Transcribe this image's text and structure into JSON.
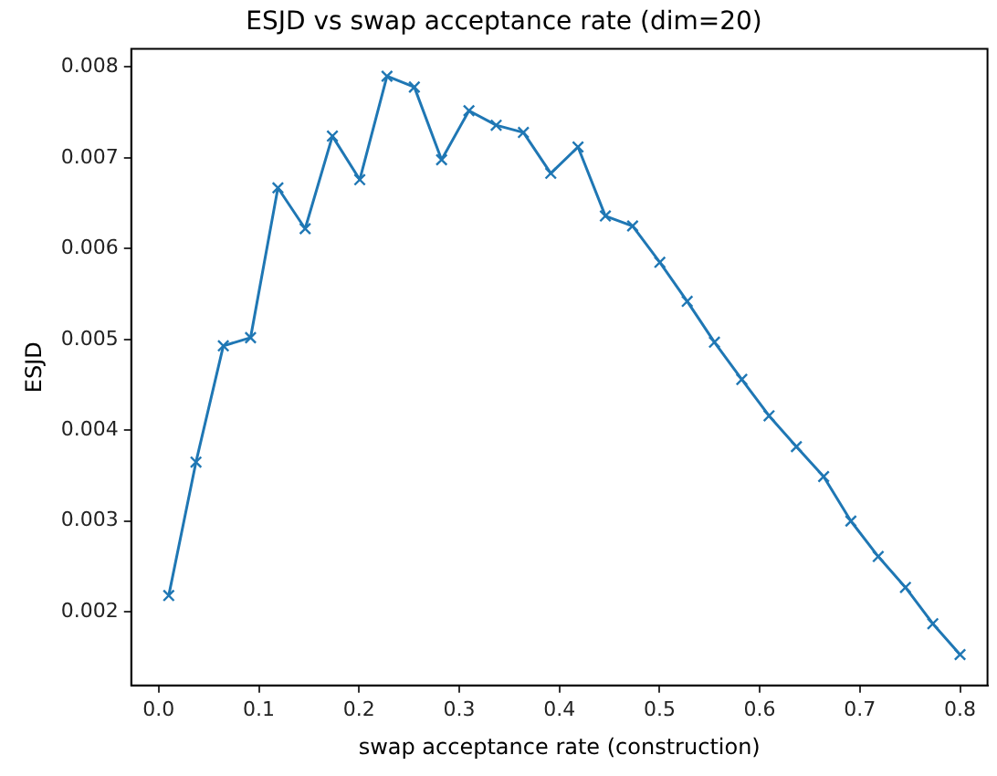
{
  "chart_data": {
    "type": "line",
    "title": "ESJD vs swap acceptance rate (dim=20)",
    "xlabel": "swap acceptance rate (construction)",
    "ylabel": "ESJD",
    "x": [
      0.01,
      0.0372,
      0.0645,
      0.0917,
      0.119,
      0.1462,
      0.1734,
      0.2007,
      0.2279,
      0.2552,
      0.2824,
      0.3097,
      0.3369,
      0.3641,
      0.3914,
      0.4186,
      0.4459,
      0.4731,
      0.5003,
      0.5276,
      0.5548,
      0.5821,
      0.6093,
      0.6366,
      0.6638,
      0.691,
      0.7183,
      0.7455,
      0.7728,
      0.8
    ],
    "series": [
      {
        "color": "#1f77b4",
        "values": [
          0.00218,
          0.00365,
          0.00493,
          0.00502,
          0.00667,
          0.00622,
          0.00724,
          0.00676,
          0.0079,
          0.00778,
          0.00698,
          0.00752,
          0.00736,
          0.00728,
          0.00683,
          0.00712,
          0.00636,
          0.00625,
          0.00585,
          0.00542,
          0.00497,
          0.00456,
          0.00416,
          0.00382,
          0.00349,
          0.003,
          0.00261,
          0.00227,
          0.00187,
          0.00153
        ]
      }
    ],
    "xlim": [
      -0.0274,
      0.8274
    ],
    "xticks": [
      {
        "value": 0,
        "label": "0.0"
      },
      0.1,
      0.2,
      0.3,
      0.4,
      0.5,
      0.6,
      0.7,
      0.8
    ],
    "ylim": [
      0.00119,
      0.0082
    ],
    "yticks": [
      0.002,
      0.003,
      0.004,
      0.005,
      0.006,
      0.007,
      0.008
    ],
    "marker": "cross",
    "line_style": "solid",
    "grid": false,
    "legend": false
  }
}
